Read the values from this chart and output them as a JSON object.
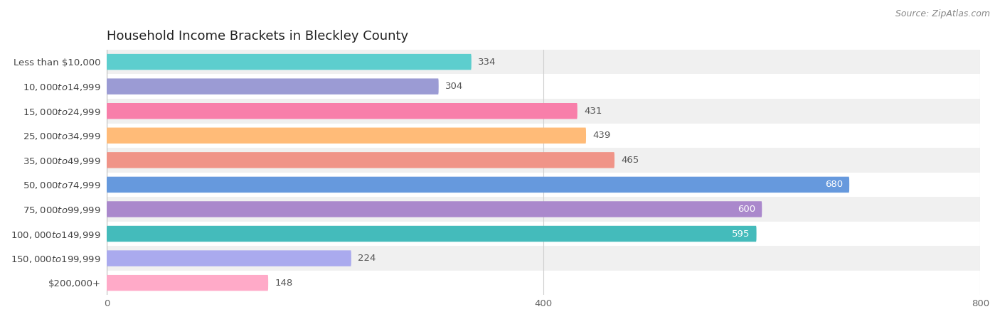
{
  "title": "Household Income Brackets in Bleckley County",
  "source": "Source: ZipAtlas.com",
  "categories": [
    "Less than $10,000",
    "$10,000 to $14,999",
    "$15,000 to $24,999",
    "$25,000 to $34,999",
    "$35,000 to $49,999",
    "$50,000 to $74,999",
    "$75,000 to $99,999",
    "$100,000 to $149,999",
    "$150,000 to $199,999",
    "$200,000+"
  ],
  "values": [
    334,
    304,
    431,
    439,
    465,
    680,
    600,
    595,
    224,
    148
  ],
  "bar_colors": [
    "#5DCECE",
    "#9B9BD4",
    "#F87FAA",
    "#FFBB78",
    "#F09488",
    "#6699DD",
    "#AA88CC",
    "#44BBBB",
    "#AAAAEE",
    "#FFAAC8"
  ],
  "xlim": [
    0,
    800
  ],
  "xticks": [
    0,
    400,
    800
  ],
  "background_color": "#ffffff",
  "row_bg_even": "#f0f0f0",
  "row_bg_odd": "#ffffff",
  "title_fontsize": 13,
  "label_fontsize": 9.5,
  "value_fontsize": 9.5,
  "source_fontsize": 9
}
